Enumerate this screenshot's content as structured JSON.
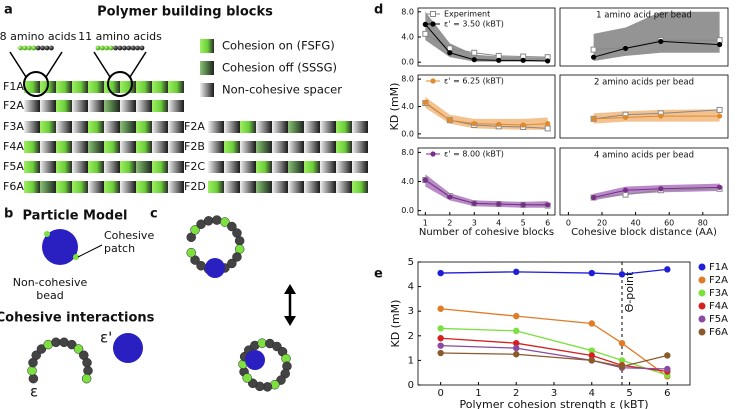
{
  "panels": {
    "a": "a",
    "b": "b",
    "c": "c",
    "d": "d",
    "e": "e"
  },
  "panel_a": {
    "title": "Polymer building blocks",
    "zoom_labels": [
      "8 amino acids",
      "11 amino acids"
    ],
    "legend": [
      "Cohesion on (FSFG)",
      "Cohesion off (SSSG)",
      "Non-cohesive spacer"
    ],
    "rows_left": [
      "F1A",
      "F2A",
      "F3A",
      "F4A",
      "F5A",
      "F6A"
    ],
    "rows_right": [
      "F2A",
      "F2B",
      "F2C",
      "F2D"
    ]
  },
  "panel_b": {
    "title": "Particle Model",
    "patch_label": [
      "Cohesive",
      "patch"
    ],
    "bead_label": [
      "Non-cohesive",
      "bead"
    ],
    "subtitle": "Cohesive interactions",
    "eps_prime": "ε'",
    "eps": "ε"
  },
  "chart_data": [
    {
      "type": "line",
      "x": [
        1,
        2,
        3,
        4,
        5,
        6
      ],
      "xlim": [
        0.7,
        6.3
      ],
      "ylim": [
        -0.6,
        8.6
      ],
      "yticks": [
        {
          "value": 0,
          "label": "0.0"
        },
        {
          "value": 4,
          "label": "4.0"
        },
        {
          "value": 8,
          "label": "8.0"
        }
      ],
      "band": {
        "color": "#666666",
        "lower": [
          3.5,
          0.8,
          0.1,
          0.1,
          0.1,
          0.1
        ],
        "upper": [
          8.0,
          3.0,
          1.2,
          0.9,
          0.8,
          0.7
        ]
      },
      "series": [
        {
          "name": "Experiment",
          "color": "#888888",
          "marker": "open-square",
          "values": [
            4.5,
            2.2,
            1.5,
            1.0,
            0.9,
            0.8
          ]
        },
        {
          "name": "ε' = 3.50 (kBT)",
          "color": "#000000",
          "marker": "circle",
          "values": [
            6.0,
            1.5,
            0.4,
            0.3,
            0.3,
            0.2
          ]
        }
      ]
    },
    {
      "type": "line",
      "x": [
        1,
        2,
        3,
        4,
        5,
        6
      ],
      "xlim": [
        0.7,
        6.3
      ],
      "ylim": [
        -0.6,
        8.6
      ],
      "y_label": "KD (mM)",
      "yticks": [
        {
          "value": 0,
          "label": "0.0"
        },
        {
          "value": 4,
          "label": "4.0"
        },
        {
          "value": 8,
          "label": "8.0"
        }
      ],
      "band": {
        "color": "#f0a860",
        "lower": [
          3.8,
          1.5,
          0.8,
          0.7,
          0.6,
          0.6
        ],
        "upper": [
          5.4,
          2.8,
          2.2,
          2.2,
          2.2,
          2.4
        ]
      },
      "series": [
        {
          "color": "#888888",
          "marker": "open-square",
          "values": [
            4.5,
            2.0,
            1.3,
            1.1,
            1.0,
            0.8
          ]
        },
        {
          "name": "ε' = 6.25 (kBT)",
          "color": "#e08a2e",
          "marker": "circle",
          "values": [
            4.6,
            2.0,
            1.5,
            1.4,
            1.3,
            1.5
          ]
        }
      ]
    },
    {
      "type": "line",
      "x": [
        1,
        2,
        3,
        4,
        5,
        6
      ],
      "xlim": [
        0.7,
        6.3
      ],
      "ylim": [
        -0.6,
        8.6
      ],
      "x_label": "Number of cohesive blocks",
      "xticks": [
        1,
        2,
        3,
        4,
        5,
        6
      ],
      "yticks": [
        {
          "value": 0,
          "label": "0.0"
        },
        {
          "value": 4,
          "label": "4.0"
        },
        {
          "value": 8,
          "label": "8.0"
        }
      ],
      "band": {
        "color": "#9b59b0",
        "lower": [
          3.3,
          1.4,
          0.6,
          0.5,
          0.4,
          0.4
        ],
        "upper": [
          5.0,
          2.4,
          1.4,
          1.3,
          1.2,
          1.3
        ]
      },
      "series": [
        {
          "color": "#888888",
          "marker": "open-square",
          "values": [
            4.2,
            2.0,
            1.0,
            0.9,
            0.8,
            0.7
          ]
        },
        {
          "name": "ε' = 8.00 (kBT)",
          "color": "#7b2d8e",
          "marker": "circle",
          "values": [
            4.2,
            1.9,
            1.0,
            0.9,
            0.8,
            0.8
          ]
        }
      ]
    },
    {
      "type": "line",
      "x": [
        15,
        34,
        55,
        90
      ],
      "xlim": [
        -5,
        95
      ],
      "ylim": [
        -0.6,
        8.6
      ],
      "annotation": "1 amino acid per bead",
      "band": {
        "color": "#666666",
        "lower": [
          0.2,
          1.0,
          1.5,
          1.5
        ],
        "upper": [
          4.5,
          5.5,
          8.0,
          8.0
        ]
      },
      "series": [
        {
          "color": "#888888",
          "marker": "open-square",
          "values": [
            2.0,
            2.3,
            3.5,
            3.5
          ]
        },
        {
          "color": "#000000",
          "marker": "circle",
          "values": [
            0.8,
            2.2,
            3.3,
            2.8
          ]
        }
      ]
    },
    {
      "type": "line",
      "x": [
        15,
        34,
        55,
        90
      ],
      "xlim": [
        -5,
        95
      ],
      "ylim": [
        -0.6,
        8.6
      ],
      "annotation": "2 amino acids per bead",
      "band": {
        "color": "#f0a860",
        "lower": [
          1.5,
          1.8,
          1.8,
          1.8
        ],
        "upper": [
          3.0,
          3.3,
          3.5,
          3.6
        ]
      },
      "series": [
        {
          "color": "#888888",
          "marker": "open-square",
          "values": [
            2.2,
            2.8,
            3.0,
            3.5
          ]
        },
        {
          "color": "#e08a2e",
          "marker": "circle",
          "values": [
            2.2,
            2.4,
            2.6,
            2.6
          ]
        }
      ]
    },
    {
      "type": "line",
      "x": [
        15,
        34,
        55,
        90
      ],
      "xlim": [
        -5,
        95
      ],
      "ylim": [
        -0.6,
        8.6
      ],
      "annotation": "4 amino acids per bead",
      "x_label": "Cohesive block distance (AA)",
      "xticks": [
        0,
        20,
        40,
        60,
        80
      ],
      "band": {
        "color": "#9b59b0",
        "lower": [
          1.4,
          2.2,
          2.5,
          2.7
        ],
        "upper": [
          2.3,
          3.3,
          3.5,
          3.7
        ]
      },
      "series": [
        {
          "color": "#888888",
          "marker": "open-square",
          "values": [
            1.8,
            2.2,
            2.8,
            3.0
          ]
        },
        {
          "color": "#7b2d8e",
          "marker": "circle",
          "values": [
            1.8,
            2.8,
            3.0,
            3.2
          ]
        }
      ]
    },
    {
      "type": "line",
      "x": [
        0,
        2,
        4,
        4.8,
        6
      ],
      "xlim": [
        -0.6,
        6.6
      ],
      "ylim": [
        0,
        5
      ],
      "xticks": [
        0,
        1,
        2,
        3,
        4,
        5,
        6
      ],
      "yticks": [
        0,
        1,
        2,
        3,
        4,
        5
      ],
      "x_label": "Polymer cohesion strength ε (kBT)",
      "y_label": "KD (mM)",
      "legend": "outside-right",
      "annotation": {
        "text": "Θ-point",
        "x": 4.8
      },
      "series": [
        {
          "name": "F1A",
          "color": "#1f1fd8",
          "marker": "circle",
          "values": [
            4.55,
            4.6,
            4.55,
            4.5,
            4.7
          ]
        },
        {
          "name": "F2A",
          "color": "#e07b28",
          "marker": "circle",
          "values": [
            3.1,
            2.8,
            2.5,
            1.7,
            0.35
          ]
        },
        {
          "name": "F3A",
          "color": "#7be040",
          "marker": "circle",
          "values": [
            2.3,
            2.2,
            1.4,
            1.0,
            0.4
          ]
        },
        {
          "name": "F4A",
          "color": "#d62020",
          "marker": "circle",
          "values": [
            1.9,
            1.7,
            1.2,
            0.8,
            0.55
          ]
        },
        {
          "name": "F5A",
          "color": "#8a4aa0",
          "marker": "circle",
          "values": [
            1.6,
            1.5,
            1.0,
            0.7,
            0.65
          ]
        },
        {
          "name": "F6A",
          "color": "#8b5a2b",
          "marker": "circle",
          "values": [
            1.3,
            1.25,
            1.0,
            0.75,
            1.2
          ]
        }
      ]
    }
  ]
}
